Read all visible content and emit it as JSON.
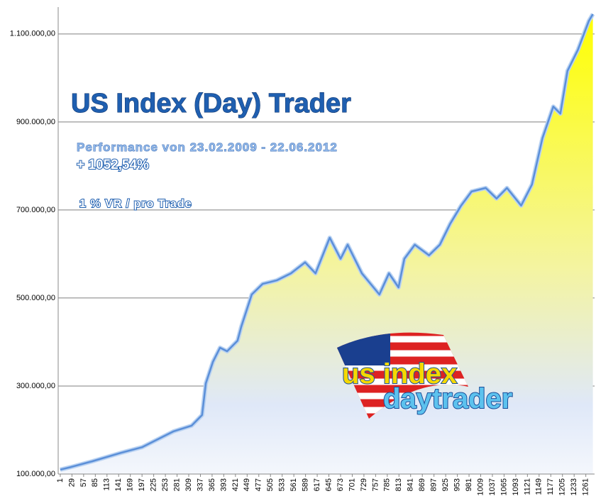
{
  "chart_data": {
    "type": "area",
    "title": "US Index (Day) Trader",
    "subtitle": "Performance  von  23.02.2009 - 22.06.2012",
    "annotations": [
      "+ 1052,54%",
      "1 % VR / pro Trade",
      "us index",
      "daytrader"
    ],
    "color": "#5b8fd8",
    "x": [
      1,
      27,
      78,
      146,
      197,
      239,
      273,
      316,
      341,
      350,
      367,
      384,
      401,
      426,
      435,
      460,
      486,
      520,
      554,
      588,
      613,
      647,
      673,
      690,
      724,
      766,
      789,
      812,
      826,
      851,
      885,
      911,
      936,
      962,
      987,
      1021,
      1047,
      1072,
      1106,
      1132,
      1157,
      1183,
      1200,
      1217,
      1242,
      1268,
      1278
    ],
    "values": [
      110000,
      116000,
      129000,
      148000,
      161000,
      181000,
      197000,
      210000,
      234000,
      306000,
      355000,
      387000,
      379000,
      403000,
      435000,
      508000,
      532000,
      540000,
      556000,
      581000,
      556000,
      637000,
      589000,
      621000,
      556000,
      508000,
      556000,
      524000,
      589000,
      621000,
      597000,
      621000,
      669000,
      710000,
      742000,
      750000,
      726000,
      750000,
      710000,
      758000,
      863000,
      935000,
      919000,
      1016000,
      1064000,
      1129000,
      1145000
    ],
    "xlim": [
      -4,
      1282
    ],
    "xticks": [
      1,
      29,
      57,
      85,
      113,
      141,
      169,
      197,
      225,
      253,
      281,
      309,
      337,
      365,
      393,
      421,
      449,
      477,
      505,
      533,
      561,
      589,
      617,
      645,
      673,
      701,
      729,
      757,
      785,
      813,
      841,
      869,
      897,
      925,
      953,
      981,
      1009,
      1037,
      1065,
      1093,
      1121,
      1149,
      1177,
      1205,
      1233,
      1261
    ],
    "ylim": [
      100000,
      1161000
    ],
    "yticks": [
      {
        "value": 100000,
        "label": "100.000,00"
      },
      {
        "value": 300000,
        "label": "300.000,00"
      },
      {
        "value": 500000,
        "label": "500.000,00"
      },
      {
        "value": 700000,
        "label": "700.000,00"
      },
      {
        "value": 900000,
        "label": "900.000,00"
      },
      {
        "value": 1100000,
        "label": "1.100.000,00"
      }
    ],
    "grid": true
  }
}
